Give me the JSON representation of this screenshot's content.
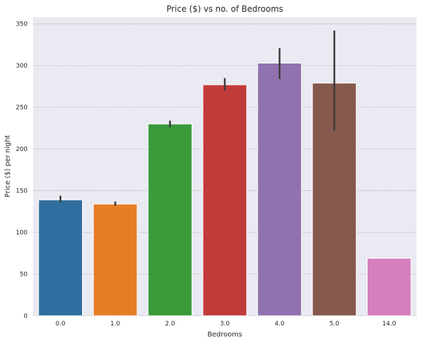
{
  "chart_data": {
    "type": "bar",
    "title": "Price ($) vs no. of Bedrooms",
    "xlabel": "Bedrooms",
    "ylabel": "Price ($) per night",
    "categories": [
      "0.0",
      "1.0",
      "2.0",
      "3.0",
      "4.0",
      "5.0",
      "14.0"
    ],
    "values": [
      139,
      134,
      230,
      277,
      303,
      279,
      69
    ],
    "error_low": [
      136,
      132,
      226,
      270,
      284,
      222,
      69
    ],
    "error_high": [
      144,
      137,
      234,
      285,
      321,
      342,
      69
    ],
    "colors": [
      "#2f6e9f",
      "#e57e27",
      "#3a9a3a",
      "#c23b3b",
      "#9172b0",
      "#86594d",
      "#d67fbe"
    ],
    "ylim": [
      0,
      358
    ],
    "yticks": [
      0,
      50,
      100,
      150,
      200,
      250,
      300,
      350
    ],
    "grid": "horizontal-dotted",
    "background": "#eaeaf2"
  }
}
